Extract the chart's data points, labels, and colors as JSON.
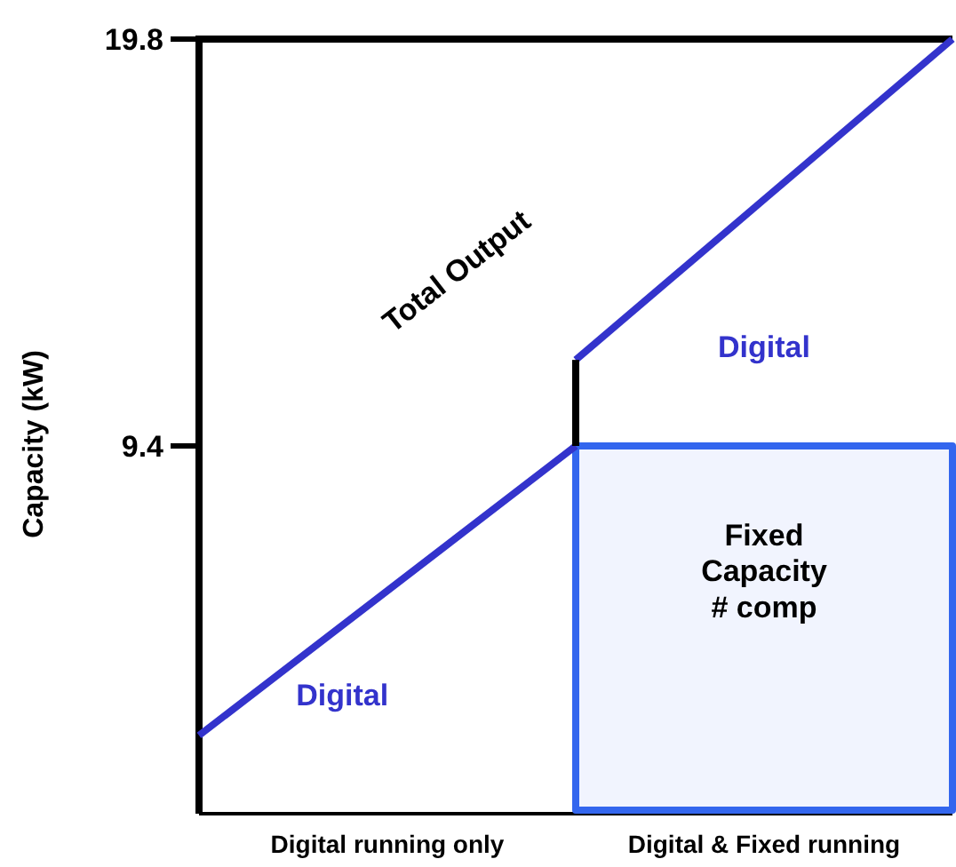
{
  "chart_data": {
    "type": "line",
    "ylabel": "Capacity (kW)",
    "categories": [
      null,
      "Digital running only",
      null,
      "Digital  & Fixed running",
      null
    ],
    "ylim": [
      0,
      19.8
    ],
    "yticks": [
      9.4,
      19.8
    ],
    "grid": false,
    "marker": "none",
    "line_style": "solid",
    "series": [
      {
        "type": "area",
        "color": "#3366ee",
        "values": [
          null,
          null,
          9.4,
          9.4,
          9.4
        ]
      },
      {
        "color": "#3333cc",
        "values": [
          2,
          5.7,
          9.4,
          null,
          null
        ]
      },
      {
        "color": "#3333cc",
        "values": [
          null,
          null,
          11.6,
          15.7,
          19.8
        ]
      }
    ],
    "annotations": [
      "Total Output",
      "Digital",
      "Digital",
      "Fixed\nCapacity\n# comp"
    ]
  }
}
